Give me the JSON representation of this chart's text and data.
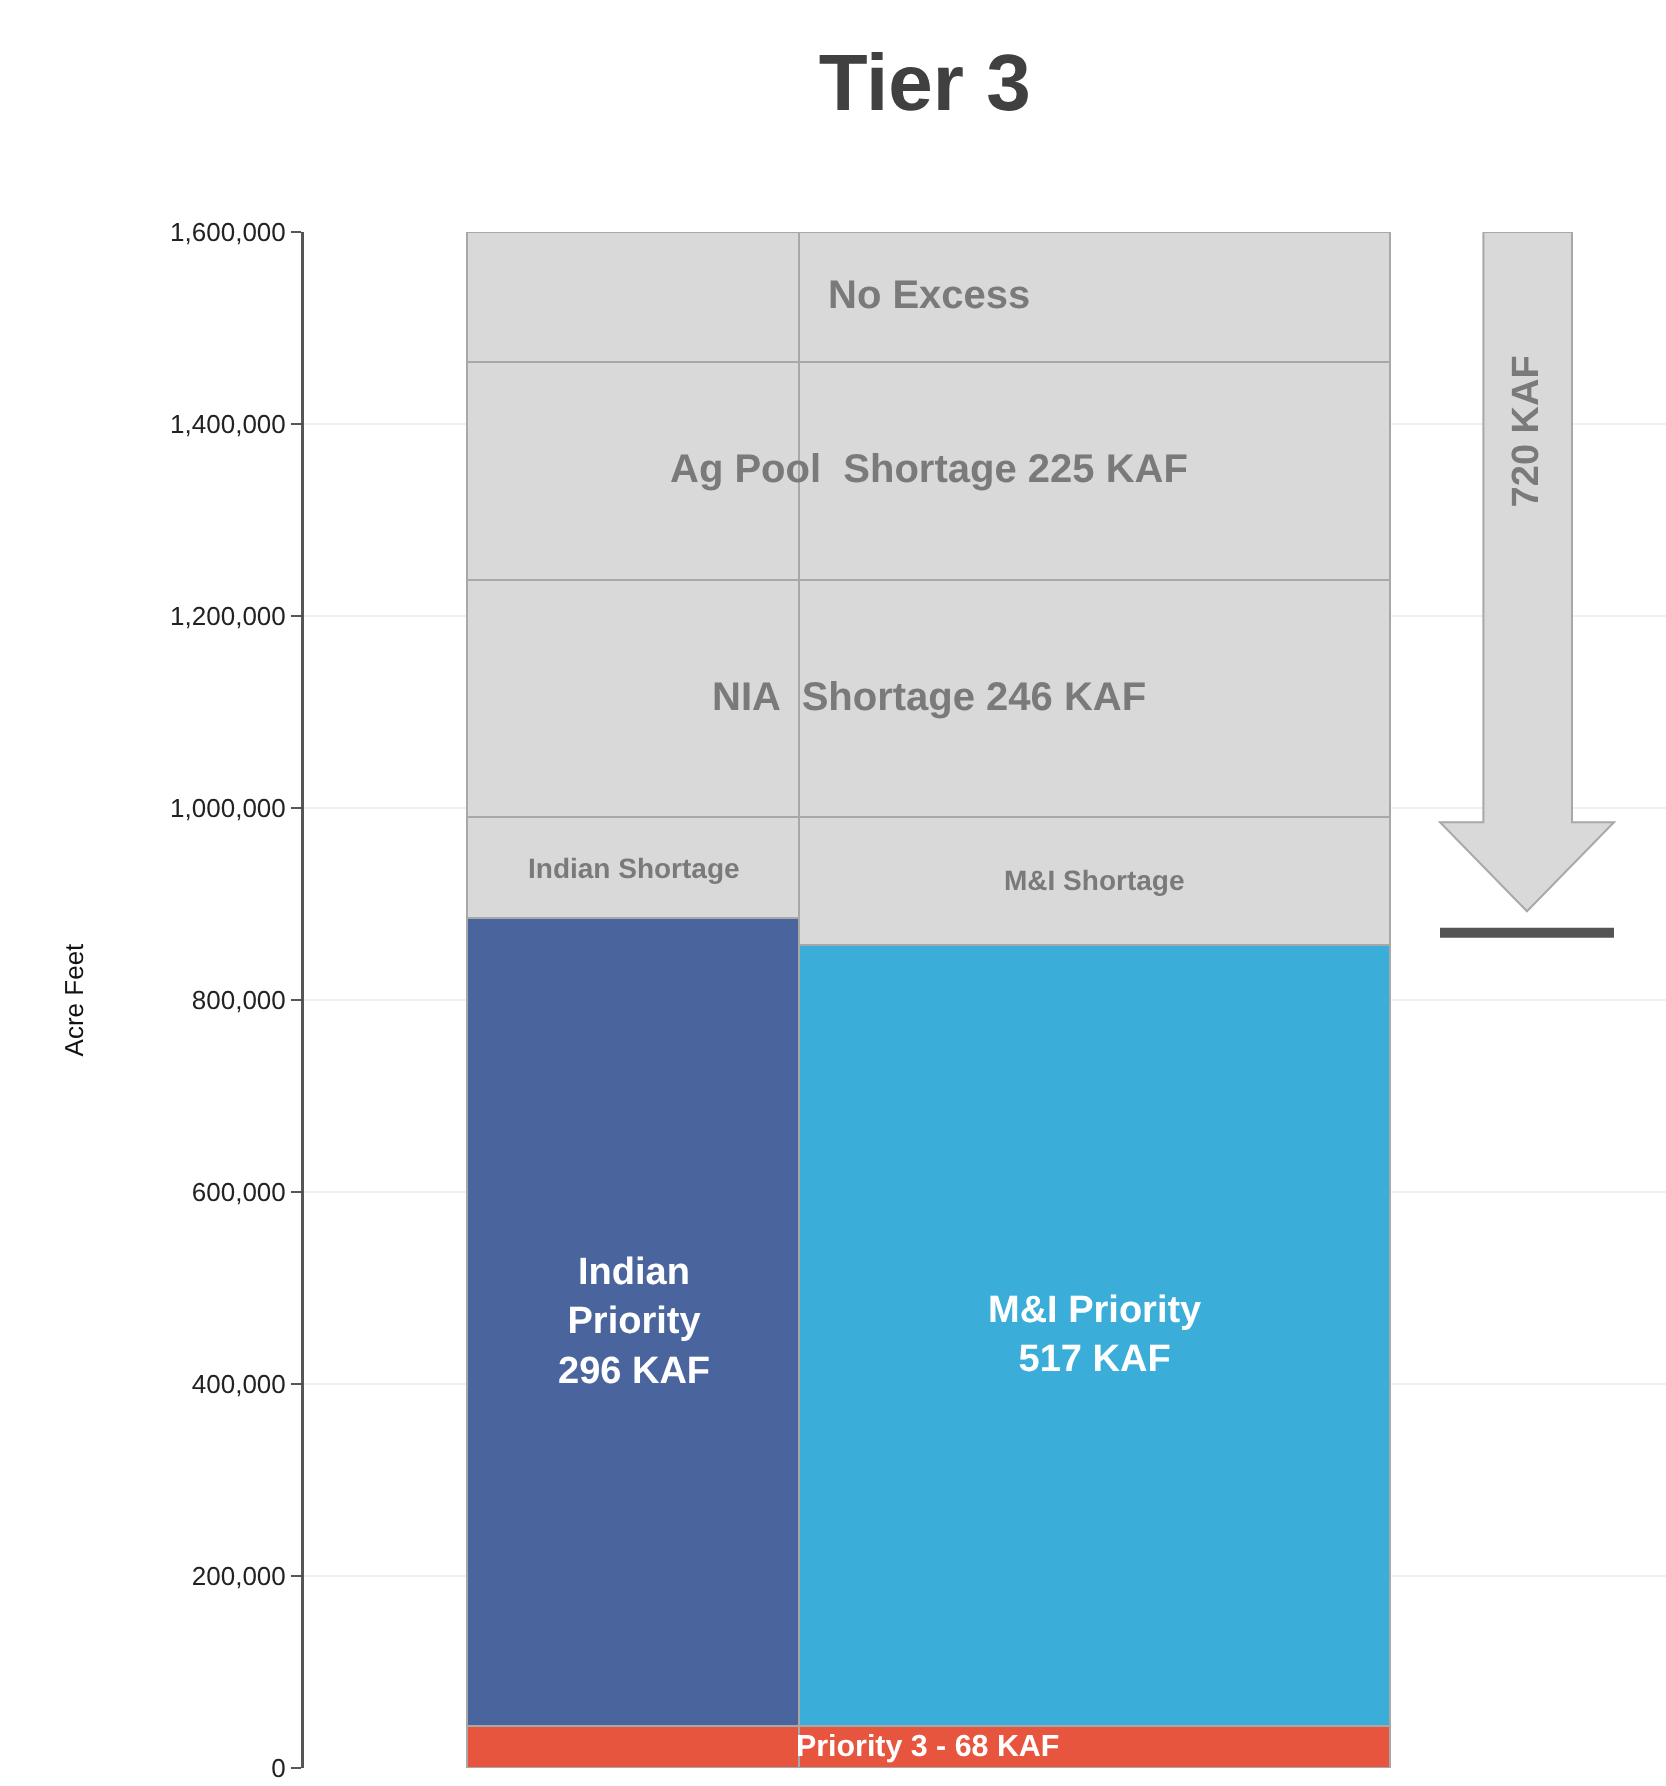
{
  "chart_data": {
    "type": "bar",
    "title": "Tier 3",
    "ylabel": "Acre Feet",
    "stacked": true,
    "categories": [
      null,
      null
    ],
    "series": [
      {
        "name": "Priority 3 - 68 KAF",
        "color": "#e8553e",
        "values": [
          44000,
          44000
        ]
      },
      {
        "name": "Indian\nPriority\n296 KAF",
        "color": "#4a649e",
        "values": [
          841000,
          null
        ]
      },
      {
        "name": "M&I Priority\n517 KAF",
        "color": "#3aaed9",
        "values": [
          null,
          813000
        ]
      },
      {
        "name": "Indian Shortage",
        "color": "#d9d9d9",
        "values": [
          106000,
          null
        ]
      },
      {
        "name": "M&I Shortage",
        "color": "#d9d9d9",
        "values": [
          null,
          134000
        ]
      },
      {
        "name": "NIA  Shortage 246 KAF",
        "color": "#d9d9d9",
        "values": [
          247000,
          247000
        ]
      },
      {
        "name": "Ag Pool  Shortage 225 KAF",
        "color": "#d9d9d9",
        "values": [
          227000,
          227000
        ]
      },
      {
        "name": "No Excess",
        "color": "#d9d9d9",
        "values": [
          135000,
          135000
        ]
      }
    ],
    "ylim": [
      0,
      1600000
    ],
    "yticks": [
      {
        "value": 0,
        "label": "0"
      },
      {
        "value": 200000,
        "label": "200,000"
      },
      {
        "value": 400000,
        "label": "400,000"
      },
      {
        "value": 600000,
        "label": "600,000"
      },
      {
        "value": 800000,
        "label": "800,000"
      },
      {
        "value": 1000000,
        "label": "1,000,000"
      },
      {
        "value": 1200000,
        "label": "1,200,000"
      },
      {
        "value": 1400000,
        "label": "1,400,000"
      },
      {
        "value": 1600000,
        "label": "1,600,000"
      }
    ],
    "grid": "y",
    "legend": false,
    "ref_lines": [
      {
        "axis": "y",
        "value": 870000,
        "color": "#555555"
      }
    ],
    "annotations": [
      "720 KAF"
    ]
  }
}
